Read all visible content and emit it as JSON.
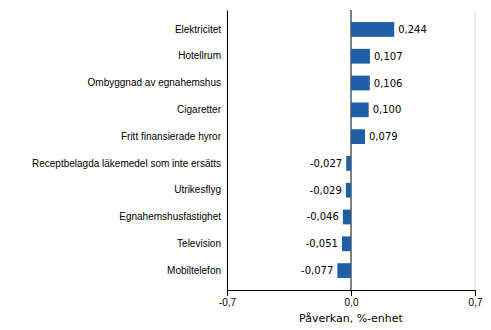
{
  "chart_data": {
    "type": "bar",
    "orientation": "horizontal",
    "categories": [
      "Mobiltelefon",
      "Television",
      "Egnahemshusfastighet",
      "Utrikesflyg",
      "Receptbelagda läkemedel som inte ersätts",
      "Fritt finansierade hyror",
      "Cigaretter",
      "Ombyggnad av egnahemshus",
      "Hotellrum",
      "Elektricitet"
    ],
    "values": [
      -0.077,
      -0.051,
      -0.046,
      -0.029,
      -0.027,
      0.079,
      0.1,
      0.106,
      0.107,
      0.244
    ],
    "value_labels": [
      "-0,077",
      "-0,051",
      "-0,046",
      "-0,029",
      "-0,027",
      "0,079",
      "0,100",
      "0,106",
      "0,107",
      "0,244"
    ],
    "data_labels": true,
    "color": "#1F5FA6",
    "xlabel": "Påverkan, %-enhet",
    "xlim": [
      -0.7,
      0.7
    ],
    "xticks": [
      {
        "value": -0.7,
        "label": "-0,7"
      },
      {
        "value": 0.0,
        "label": "0,0"
      },
      {
        "value": 0.7,
        "label": "0,7"
      }
    ],
    "grid": true
  }
}
